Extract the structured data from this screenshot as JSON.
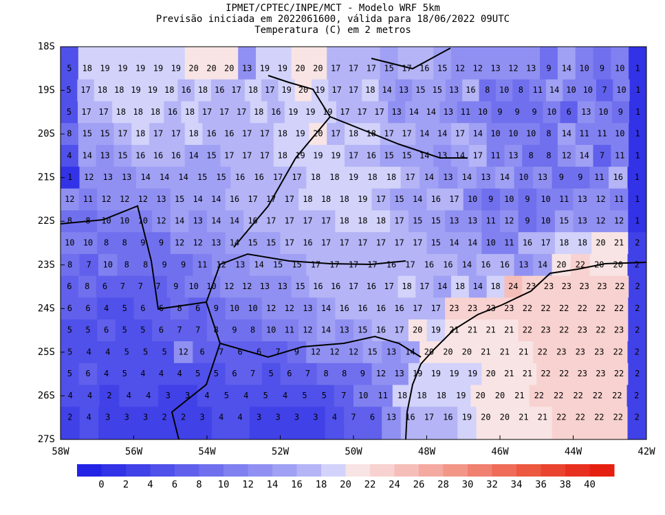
{
  "header": {
    "title_lines": [
      "IPMET/CPTEC/INPE/MCT - Modelo WRF 5km",
      "Previsão iniciada em 2022061600, válida para 18/06/2022 09UTC",
      "Temperatura (C) em 2 metros"
    ]
  },
  "map": {
    "lon_range": [
      -58,
      -42
    ],
    "lat_range": [
      -18,
      -27
    ],
    "lon_ticks": [
      {
        "value": -58,
        "label": "58W"
      },
      {
        "value": -56,
        "label": "56W"
      },
      {
        "value": -54,
        "label": "54W"
      },
      {
        "value": -52,
        "label": "52W"
      },
      {
        "value": -50,
        "label": "50W"
      },
      {
        "value": -48,
        "label": "48W"
      },
      {
        "value": -46,
        "label": "46W"
      },
      {
        "value": -44,
        "label": "44W"
      },
      {
        "value": -42,
        "label": "42W"
      }
    ],
    "lat_ticks": [
      {
        "value": -18,
        "label": "18S"
      },
      {
        "value": -19,
        "label": "19S"
      },
      {
        "value": -20,
        "label": "20S"
      },
      {
        "value": -21,
        "label": "21S"
      },
      {
        "value": -22,
        "label": "22S"
      },
      {
        "value": -23,
        "label": "23S"
      },
      {
        "value": -24,
        "label": "24S"
      },
      {
        "value": -25,
        "label": "25S"
      },
      {
        "value": -26,
        "label": "26S"
      },
      {
        "value": -27,
        "label": "27S"
      }
    ],
    "grid_values": [
      [
        5,
        18,
        19,
        19,
        19,
        19,
        19,
        20,
        20,
        20,
        13,
        19,
        19,
        20,
        20,
        17,
        17,
        17,
        15,
        17,
        16,
        15,
        12,
        12,
        13,
        12,
        13,
        9,
        14,
        10,
        9,
        10,
        1
      ],
      [
        5,
        17,
        18,
        18,
        19,
        19,
        18,
        16,
        18,
        16,
        17,
        18,
        17,
        19,
        20,
        19,
        17,
        17,
        18,
        14,
        13,
        15,
        15,
        13,
        16,
        8,
        10,
        8,
        11,
        14,
        10,
        10,
        7,
        10,
        1
      ],
      [
        5,
        17,
        17,
        18,
        18,
        18,
        16,
        18,
        17,
        17,
        17,
        18,
        16,
        19,
        19,
        19,
        17,
        17,
        17,
        13,
        14,
        14,
        13,
        11,
        10,
        9,
        9,
        9,
        10,
        6,
        13,
        10,
        9,
        1
      ],
      [
        8,
        15,
        15,
        17,
        18,
        17,
        17,
        18,
        16,
        16,
        17,
        17,
        18,
        19,
        20,
        17,
        18,
        18,
        17,
        17,
        14,
        14,
        17,
        14,
        10,
        10,
        10,
        8,
        14,
        11,
        11,
        10,
        1
      ],
      [
        4,
        14,
        13,
        15,
        16,
        16,
        16,
        14,
        15,
        17,
        17,
        17,
        18,
        19,
        19,
        19,
        17,
        16,
        15,
        15,
        14,
        13,
        14,
        17,
        11,
        13,
        8,
        8,
        12,
        14,
        7,
        11,
        1
      ],
      [
        1,
        12,
        13,
        13,
        14,
        14,
        14,
        15,
        15,
        16,
        16,
        17,
        17,
        18,
        18,
        19,
        18,
        18,
        17,
        14,
        13,
        14,
        13,
        14,
        10,
        13,
        9,
        9,
        11,
        16,
        1
      ],
      [
        12,
        11,
        12,
        12,
        12,
        13,
        15,
        14,
        14,
        16,
        17,
        17,
        17,
        18,
        18,
        18,
        19,
        17,
        15,
        14,
        16,
        17,
        10,
        9,
        10,
        9,
        10,
        11,
        13,
        12,
        11,
        1
      ],
      [
        8,
        8,
        10,
        10,
        10,
        12,
        14,
        13,
        14,
        14,
        16,
        17,
        17,
        17,
        17,
        18,
        18,
        18,
        17,
        15,
        15,
        13,
        13,
        11,
        12,
        9,
        10,
        15,
        13,
        12,
        12,
        1
      ],
      [
        10,
        10,
        8,
        8,
        9,
        9,
        12,
        12,
        13,
        14,
        15,
        15,
        17,
        16,
        17,
        17,
        17,
        17,
        17,
        17,
        15,
        14,
        14,
        10,
        11,
        16,
        17,
        18,
        18,
        20,
        21,
        2
      ],
      [
        8,
        7,
        10,
        8,
        8,
        9,
        9,
        11,
        12,
        13,
        14,
        15,
        15,
        17,
        17,
        17,
        17,
        16,
        17,
        16,
        16,
        14,
        16,
        16,
        13,
        14,
        20,
        22,
        20,
        20,
        2
      ],
      [
        6,
        8,
        6,
        7,
        7,
        7,
        9,
        10,
        10,
        12,
        12,
        13,
        13,
        15,
        16,
        16,
        17,
        16,
        17,
        18,
        17,
        14,
        18,
        14,
        18,
        24,
        23,
        23,
        23,
        23,
        23,
        22,
        2
      ],
      [
        6,
        6,
        4,
        5,
        6,
        6,
        8,
        6,
        9,
        10,
        10,
        12,
        12,
        13,
        14,
        16,
        16,
        16,
        16,
        17,
        17,
        23,
        23,
        23,
        23,
        22,
        22,
        22,
        22,
        22,
        22,
        2
      ],
      [
        5,
        5,
        6,
        5,
        5,
        6,
        7,
        7,
        8,
        9,
        8,
        10,
        11,
        12,
        14,
        13,
        15,
        16,
        17,
        20,
        19,
        21,
        21,
        21,
        21,
        22,
        23,
        22,
        23,
        22,
        23,
        2
      ],
      [
        5,
        4,
        4,
        5,
        5,
        5,
        12,
        6,
        7,
        6,
        6,
        7,
        9,
        12,
        12,
        12,
        15,
        13,
        14,
        20,
        20,
        20,
        21,
        21,
        21,
        22,
        23,
        23,
        23,
        22,
        2
      ],
      [
        5,
        6,
        4,
        5,
        4,
        4,
        4,
        5,
        5,
        6,
        7,
        5,
        6,
        7,
        8,
        8,
        9,
        12,
        13,
        19,
        19,
        19,
        19,
        20,
        21,
        21,
        22,
        22,
        23,
        23,
        22,
        2
      ],
      [
        4,
        4,
        2,
        4,
        4,
        3,
        3,
        4,
        5,
        4,
        5,
        4,
        5,
        5,
        7,
        10,
        11,
        18,
        18,
        18,
        19,
        20,
        20,
        21,
        22,
        22,
        22,
        22,
        22,
        2
      ],
      [
        2,
        4,
        3,
        3,
        3,
        2,
        2,
        3,
        4,
        4,
        3,
        3,
        3,
        3,
        4,
        7,
        6,
        13,
        16,
        17,
        16,
        19,
        20,
        20,
        21,
        21,
        22,
        22,
        22,
        22,
        2
      ]
    ]
  },
  "colorbar": {
    "levels": [
      0,
      2,
      4,
      6,
      8,
      10,
      12,
      14,
      16,
      18,
      20,
      22,
      24,
      26,
      28,
      30,
      32,
      34,
      36,
      38,
      40
    ],
    "colors": [
      "#2323e6",
      "#3232e6",
      "#4141e8",
      "#5050ea",
      "#6060ec",
      "#7070ee",
      "#8080f0",
      "#9090f2",
      "#a0a0f4",
      "#b4b4f6",
      "#d2d2fa",
      "#f8e4e4",
      "#f8d2d0",
      "#f6beb8",
      "#f4aaa0",
      "#f29688",
      "#f08070",
      "#ee6c58",
      "#ec5840",
      "#ea4430",
      "#e83020",
      "#e62010"
    ]
  }
}
